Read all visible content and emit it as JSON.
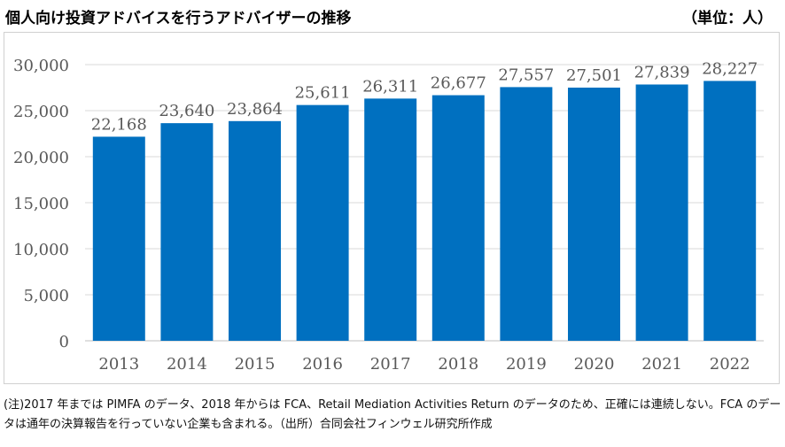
{
  "title": "個人向け投資アドバイスを行うアドバイザーの推移",
  "unit": "（単位：人）",
  "note": "(注)2017 年までは PIMFA のデータ、2018 年からは FCA、Retail Mediation Activities Return のデータのため、正確には連続しない。FCA のデータは通年の決算報告を行っていない企業も含まれる。（出所）合同会社フィンウェル研究所作成",
  "colors": {
    "bar": "#0070c0",
    "grid": "#d9d9d9",
    "axis_text": "#595959"
  },
  "chart_data": {
    "type": "bar",
    "title": "個人向け投資アドバイスを行うアドバイザーの推移",
    "ylabel": "",
    "xlabel": "",
    "categories": [
      "2013",
      "2014",
      "2015",
      "2016",
      "2017",
      "2018",
      "2019",
      "2020",
      "2021",
      "2022"
    ],
    "values": [
      22168,
      23640,
      23864,
      25611,
      26311,
      26677,
      27557,
      27501,
      27839,
      28227
    ],
    "value_labels": [
      "22,168",
      "23,640",
      "23,864",
      "25,611",
      "26,311",
      "26,677",
      "27,557",
      "27,501",
      "27,839",
      "28,227"
    ],
    "yticks": [
      "0",
      "5,000",
      "10,000",
      "15,000",
      "20,000",
      "25,000",
      "30,000"
    ],
    "ylim": [
      0,
      30000
    ],
    "grid": true,
    "legend": "none"
  }
}
